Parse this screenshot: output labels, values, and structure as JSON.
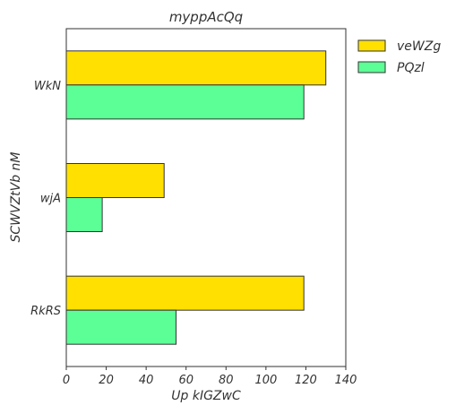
{
  "chart_data": {
    "type": "bar",
    "orientation": "horizontal",
    "title": "myppAcQq",
    "xlabel": "Up kIGZwC",
    "ylabel": "SCWVZtVb nM",
    "categories": [
      "WkN",
      "wjA",
      "RkRS"
    ],
    "series": [
      {
        "name": "veWZg",
        "values": [
          130,
          49,
          119
        ],
        "color": "#ffe000"
      },
      {
        "name": "PQzl",
        "values": [
          119,
          18,
          55
        ],
        "color": "#5cff96"
      }
    ],
    "xlim": [
      0,
      140
    ],
    "xticks": [
      0,
      20,
      40,
      60,
      80,
      100,
      120,
      140
    ],
    "grid": false,
    "legend_position": "outside-top-right"
  }
}
